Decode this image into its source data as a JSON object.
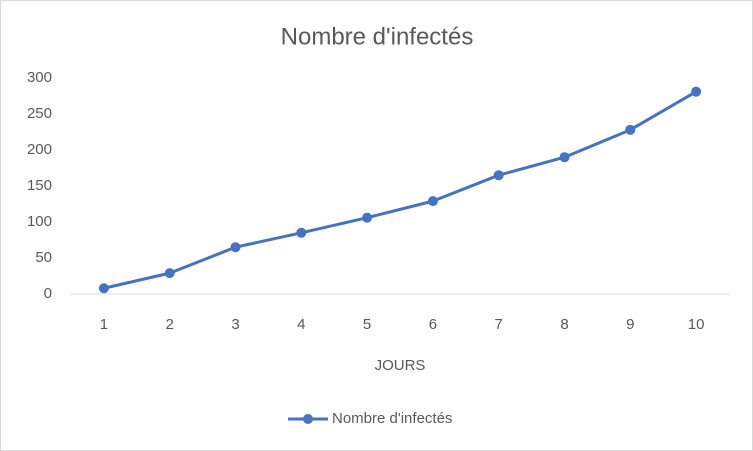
{
  "chart_data": {
    "type": "line",
    "title": "Nombre d'infectés",
    "x_label": "JOURS",
    "categories": [
      1,
      2,
      3,
      4,
      5,
      6,
      7,
      8,
      9,
      10
    ],
    "series": [
      {
        "name": "Nombre d'infectés",
        "color": "#4472c4",
        "values": [
          8,
          29,
          65,
          85,
          106,
          129,
          165,
          190,
          228,
          281
        ]
      }
    ],
    "ylim": [
      0,
      300
    ],
    "yticks": [
      0,
      50,
      100,
      150,
      200,
      250,
      300
    ],
    "grid": false,
    "legend": "bottom"
  }
}
